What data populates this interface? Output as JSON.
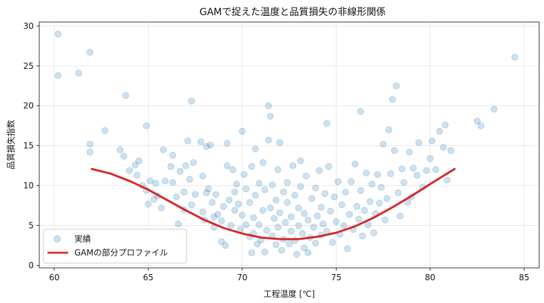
{
  "chart_data": {
    "type": "scatter",
    "title": "GAMで捉えた温度と品質損失の非線形関係",
    "xlabel": "工程温度 [℃]",
    "ylabel": "品質損失指数",
    "xlim": [
      59.2,
      85.8
    ],
    "ylim": [
      -0.3,
      30.5
    ],
    "xticks": [
      60,
      65,
      70,
      75,
      80,
      85
    ],
    "yticks": [
      0,
      5,
      10,
      15,
      20,
      25,
      30
    ],
    "grid": true,
    "legend_position": "bottom-left",
    "series": [
      {
        "name": "実績",
        "type": "scatter",
        "color": "#1f77b4",
        "alpha": 0.22,
        "points": [
          [
            60.2,
            29.0
          ],
          [
            60.2,
            23.8
          ],
          [
            61.3,
            24.1
          ],
          [
            61.9,
            26.7
          ],
          [
            61.9,
            15.2
          ],
          [
            61.9,
            14.2
          ],
          [
            62.7,
            16.9
          ],
          [
            63.5,
            14.5
          ],
          [
            63.7,
            13.7
          ],
          [
            63.8,
            21.3
          ],
          [
            64.0,
            11.9
          ],
          [
            64.3,
            12.6
          ],
          [
            64.5,
            13.1
          ],
          [
            64.4,
            11.3
          ],
          [
            64.7,
            10.0
          ],
          [
            64.9,
            17.5
          ],
          [
            64.9,
            9.4
          ],
          [
            65.0,
            7.7
          ],
          [
            65.1,
            10.6
          ],
          [
            65.3,
            8.3
          ],
          [
            65.4,
            10.3
          ],
          [
            65.5,
            8.7
          ],
          [
            65.7,
            7.2
          ],
          [
            65.8,
            14.5
          ],
          [
            65.9,
            10.6
          ],
          [
            66.2,
            12.4
          ],
          [
            66.3,
            13.8
          ],
          [
            66.3,
            10.4
          ],
          [
            66.5,
            8.6
          ],
          [
            66.6,
            5.2
          ],
          [
            66.7,
            11.8
          ],
          [
            66.9,
            9.2
          ],
          [
            66.9,
            7.0
          ],
          [
            67.0,
            12.5
          ],
          [
            67.1,
            15.6
          ],
          [
            67.2,
            10.8
          ],
          [
            67.3,
            20.6
          ],
          [
            67.4,
            12.9
          ],
          [
            67.3,
            7.6
          ],
          [
            67.5,
            8.9
          ],
          [
            67.8,
            15.5
          ],
          [
            67.9,
            11.2
          ],
          [
            67.9,
            6.7
          ],
          [
            68.0,
            5.7
          ],
          [
            68.1,
            9.1
          ],
          [
            68.1,
            14.9
          ],
          [
            68.3,
            15.1
          ],
          [
            68.2,
            9.6
          ],
          [
            68.4,
            7.9
          ],
          [
            68.5,
            6.1
          ],
          [
            68.5,
            4.8
          ],
          [
            68.6,
            8.9
          ],
          [
            68.7,
            6.4
          ],
          [
            68.9,
            3.0
          ],
          [
            68.9,
            5.6
          ],
          [
            69.0,
            7.4
          ],
          [
            69.1,
            2.5
          ],
          [
            69.2,
            15.3
          ],
          [
            69.2,
            12.5
          ],
          [
            69.3,
            8.2
          ],
          [
            69.4,
            5.0
          ],
          [
            69.5,
            12.0
          ],
          [
            69.6,
            6.9
          ],
          [
            69.6,
            9.2
          ],
          [
            69.7,
            10.2
          ],
          [
            69.8,
            7.7
          ],
          [
            69.9,
            4.5
          ],
          [
            70.0,
            16.8
          ],
          [
            70.0,
            6.3
          ],
          [
            70.1,
            11.4
          ],
          [
            70.2,
            9.6
          ],
          [
            70.2,
            5.1
          ],
          [
            70.4,
            3.6
          ],
          [
            70.4,
            7.9
          ],
          [
            70.5,
            12.4
          ],
          [
            70.5,
            1.6
          ],
          [
            70.6,
            4.0
          ],
          [
            70.6,
            6.0
          ],
          [
            70.7,
            14.6
          ],
          [
            70.7,
            8.8
          ],
          [
            70.8,
            2.7
          ],
          [
            70.9,
            10.3
          ],
          [
            70.9,
            5.1
          ],
          [
            71.0,
            3.2
          ],
          [
            71.1,
            12.9
          ],
          [
            71.1,
            6.9
          ],
          [
            71.2,
            9.5
          ],
          [
            71.2,
            1.7
          ],
          [
            71.3,
            4.4
          ],
          [
            71.4,
            15.7
          ],
          [
            71.4,
            20.0
          ],
          [
            71.5,
            18.7
          ],
          [
            71.5,
            7.2
          ],
          [
            71.6,
            10.1
          ],
          [
            71.6,
            3.7
          ],
          [
            71.7,
            5.9
          ],
          [
            71.8,
            2.6
          ],
          [
            71.8,
            8.2
          ],
          [
            71.9,
            12.0
          ],
          [
            71.9,
            4.8
          ],
          [
            72.0,
            15.4
          ],
          [
            72.0,
            6.6
          ],
          [
            72.1,
            1.9
          ],
          [
            72.2,
            9.2
          ],
          [
            72.2,
            3.3
          ],
          [
            72.3,
            5.4
          ],
          [
            72.4,
            7.9
          ],
          [
            72.4,
            10.4
          ],
          [
            72.5,
            2.7
          ],
          [
            72.6,
            4.3
          ],
          [
            72.6,
            6.1
          ],
          [
            72.7,
            12.5
          ],
          [
            72.8,
            8.8
          ],
          [
            72.8,
            3.1
          ],
          [
            72.9,
            1.4
          ],
          [
            73.0,
            5.0
          ],
          [
            73.0,
            7.2
          ],
          [
            73.1,
            13.1
          ],
          [
            73.1,
            9.9
          ],
          [
            73.2,
            4.0
          ],
          [
            73.3,
            2.2
          ],
          [
            73.3,
            6.5
          ],
          [
            73.4,
            11.2
          ],
          [
            73.5,
            5.7
          ],
          [
            73.5,
            1.6
          ],
          [
            73.6,
            3.5
          ],
          [
            73.7,
            8.4
          ],
          [
            73.8,
            4.8
          ],
          [
            73.9,
            2.8
          ],
          [
            73.9,
            9.7
          ],
          [
            74.0,
            6.2
          ],
          [
            74.1,
            11.9
          ],
          [
            74.2,
            3.8
          ],
          [
            74.2,
            7.3
          ],
          [
            74.3,
            5.2
          ],
          [
            74.4,
            9.0
          ],
          [
            74.5,
            17.8
          ],
          [
            74.5,
            4.3
          ],
          [
            74.6,
            12.4
          ],
          [
            74.7,
            6.8
          ],
          [
            74.8,
            2.9
          ],
          [
            74.9,
            8.6
          ],
          [
            75.0,
            5.5
          ],
          [
            75.1,
            10.5
          ],
          [
            75.2,
            3.9
          ],
          [
            75.3,
            7.6
          ],
          [
            75.4,
            5.0
          ],
          [
            75.5,
            9.2
          ],
          [
            75.6,
            2.1
          ],
          [
            75.7,
            6.4
          ],
          [
            75.8,
            10.5
          ],
          [
            75.9,
            4.5
          ],
          [
            76.0,
            12.7
          ],
          [
            76.1,
            7.4
          ],
          [
            76.2,
            5.8
          ],
          [
            76.3,
            19.3
          ],
          [
            76.3,
            9.4
          ],
          [
            76.4,
            3.7
          ],
          [
            76.5,
            6.9
          ],
          [
            76.6,
            11.6
          ],
          [
            76.7,
            5.1
          ],
          [
            76.8,
            8.0
          ],
          [
            76.9,
            10.2
          ],
          [
            77.0,
            4.1
          ],
          [
            77.1,
            6.5
          ],
          [
            77.2,
            11.4
          ],
          [
            77.3,
            7.8
          ],
          [
            77.4,
            9.8
          ],
          [
            77.5,
            15.2
          ],
          [
            77.6,
            5.7
          ],
          [
            77.7,
            8.4
          ],
          [
            77.8,
            17.0
          ],
          [
            77.9,
            11.5
          ],
          [
            78.0,
            20.8
          ],
          [
            78.1,
            14.4
          ],
          [
            78.2,
            22.5
          ],
          [
            78.3,
            9.1
          ],
          [
            78.4,
            6.2
          ],
          [
            78.5,
            12.1
          ],
          [
            78.6,
            10.4
          ],
          [
            78.8,
            7.9
          ],
          [
            78.9,
            14.2
          ],
          [
            79.0,
            8.6
          ],
          [
            79.1,
            12.2
          ],
          [
            79.3,
            11.3
          ],
          [
            79.4,
            15.4
          ],
          [
            79.6,
            9.8
          ],
          [
            79.8,
            11.9
          ],
          [
            80.0,
            13.4
          ],
          [
            80.1,
            15.6
          ],
          [
            80.3,
            12.0
          ],
          [
            80.5,
            16.8
          ],
          [
            80.7,
            14.8
          ],
          [
            80.8,
            17.6
          ],
          [
            80.9,
            10.7
          ],
          [
            81.1,
            14.4
          ],
          [
            82.5,
            18.1
          ],
          [
            82.7,
            17.5
          ],
          [
            83.4,
            19.6
          ],
          [
            84.5,
            26.1
          ]
        ]
      },
      {
        "name": "GAMの部分プロファイル",
        "type": "line",
        "color": "#d62728",
        "points": [
          [
            62.0,
            12.1
          ],
          [
            63.0,
            11.5
          ],
          [
            64.0,
            10.6
          ],
          [
            65.0,
            9.5
          ],
          [
            66.0,
            8.2
          ],
          [
            67.0,
            6.9
          ],
          [
            68.0,
            5.7
          ],
          [
            69.0,
            4.7
          ],
          [
            70.0,
            4.0
          ],
          [
            71.0,
            3.5
          ],
          [
            72.0,
            3.3
          ],
          [
            73.0,
            3.3
          ],
          [
            74.0,
            3.6
          ],
          [
            75.0,
            4.1
          ],
          [
            76.0,
            4.9
          ],
          [
            77.0,
            6.0
          ],
          [
            78.0,
            7.3
          ],
          [
            79.0,
            8.7
          ],
          [
            80.0,
            10.2
          ],
          [
            81.3,
            12.1
          ]
        ]
      }
    ]
  }
}
